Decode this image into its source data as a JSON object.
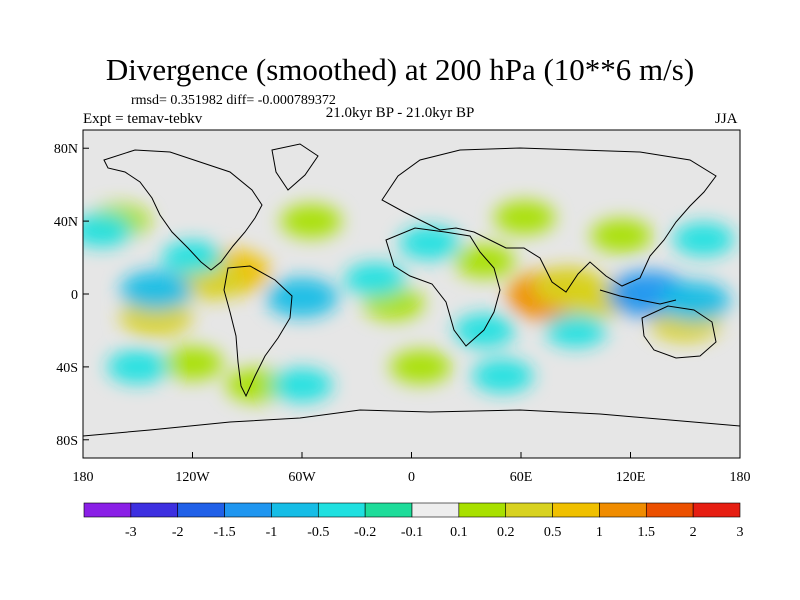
{
  "title": "Divergence (smoothed) at 200 hPa (10**6 m/s)",
  "stats": "rmsd= 0.351982 diff= -0.000789372",
  "experiment": "Expt = temav-tebkv",
  "period": "21.0kyr BP - 21.0kyr BP",
  "season": "JJA",
  "background_color": "#e6e6e6",
  "axes": {
    "lat_ticks": [
      {
        "value": 80,
        "label": "80N"
      },
      {
        "value": 40,
        "label": "40N"
      },
      {
        "value": 0,
        "label": "0"
      },
      {
        "value": -40,
        "label": "40S"
      },
      {
        "value": -80,
        "label": "80S"
      }
    ],
    "lon_ticks": [
      {
        "value": -180,
        "label": "180"
      },
      {
        "value": -120,
        "label": "120W"
      },
      {
        "value": -60,
        "label": "60W"
      },
      {
        "value": 0,
        "label": "0"
      },
      {
        "value": 60,
        "label": "60E"
      },
      {
        "value": 120,
        "label": "120E"
      },
      {
        "value": 180,
        "label": "180"
      }
    ]
  },
  "colorbar": {
    "labels": [
      "-3",
      "-2",
      "-1.5",
      "-1",
      "-0.5",
      "-0.2",
      "-0.1",
      "0.1",
      "0.2",
      "0.5",
      "1",
      "1.5",
      "2",
      "3"
    ],
    "colors": [
      "#8a1fe6",
      "#3d2fe0",
      "#2060e8",
      "#1f96f0",
      "#16bde6",
      "#1fe0e0",
      "#1edc9a",
      "#eeeeee",
      "#a8e000",
      "#d8d220",
      "#f0c000",
      "#f08c00",
      "#ec5000",
      "#e61e12"
    ]
  },
  "map_features": [
    {
      "lon": -100,
      "lat": 12,
      "level": 3
    },
    {
      "lon": -110,
      "lat": 8,
      "level": 2
    },
    {
      "lon": 78,
      "lat": -1,
      "level": 4
    },
    {
      "lon": 86,
      "lat": 4,
      "level": 2
    },
    {
      "lon": 102,
      "lat": -2,
      "level": 2
    },
    {
      "lon": -10,
      "lat": -5,
      "level": 1
    },
    {
      "lon": 40,
      "lat": 18,
      "level": 1
    },
    {
      "lon": 150,
      "lat": -15,
      "level": 2
    },
    {
      "lon": -140,
      "lat": -12,
      "level": 2
    },
    {
      "lon": -55,
      "lat": 40,
      "level": 1
    },
    {
      "lon": -85,
      "lat": -50,
      "level": 1
    },
    {
      "lon": -160,
      "lat": 40,
      "level": 1
    },
    {
      "lon": 115,
      "lat": 32,
      "level": 1
    },
    {
      "lon": 62,
      "lat": 42,
      "level": 1
    },
    {
      "lon": -120,
      "lat": -38,
      "level": 1
    },
    {
      "lon": 5,
      "lat": -40,
      "level": 1
    },
    {
      "lon": -120,
      "lat": 20,
      "level": -1
    },
    {
      "lon": -140,
      "lat": 2,
      "level": -2
    },
    {
      "lon": -60,
      "lat": -2,
      "level": -2
    },
    {
      "lon": 130,
      "lat": 0,
      "level": -3
    },
    {
      "lon": 155,
      "lat": -4,
      "level": -2
    },
    {
      "lon": 90,
      "lat": -20,
      "level": -1
    },
    {
      "lon": 40,
      "lat": -20,
      "level": -1
    },
    {
      "lon": -150,
      "lat": -40,
      "level": -1
    },
    {
      "lon": -60,
      "lat": -50,
      "level": -1
    },
    {
      "lon": 10,
      "lat": 28,
      "level": -1
    },
    {
      "lon": -20,
      "lat": 8,
      "level": -1
    },
    {
      "lon": 160,
      "lat": 30,
      "level": -1
    },
    {
      "lon": -170,
      "lat": 35,
      "level": -1
    },
    {
      "lon": 50,
      "lat": -45,
      "level": -1
    }
  ]
}
